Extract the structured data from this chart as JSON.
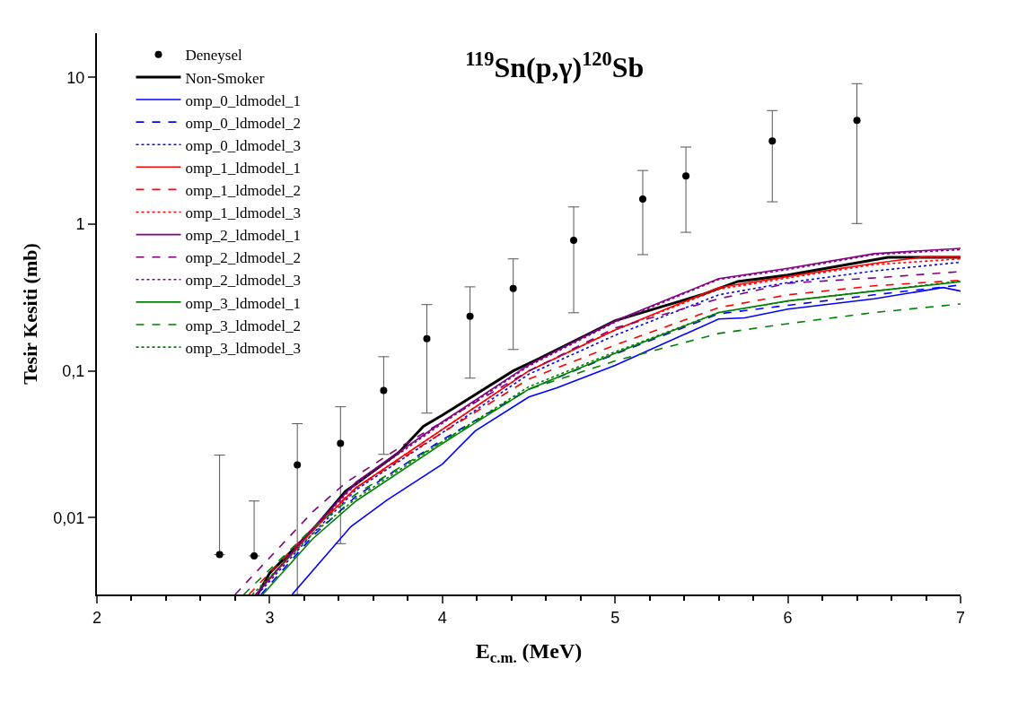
{
  "chart_data": {
    "type": "line",
    "title": "$^{119}$Sn(p,γ)$^{120}$Sb",
    "xlabel": "E$_{c.m.}$ (MeV)",
    "ylabel": "Tesir Kesiti (mb)",
    "log": "y",
    "xlim": [
      2,
      7
    ],
    "xticks": [
      2,
      3,
      4,
      5,
      6,
      7
    ],
    "ylim": [
      0.003,
      20
    ],
    "yticks": [
      {
        "value": 0.01,
        "label": "0,01"
      },
      {
        "value": 0.1,
        "label": "0,1"
      },
      1,
      10
    ],
    "grid": false,
    "legend": "top left",
    "series": [
      {
        "name": "Deneysel",
        "type": "scatter",
        "marker": "circle",
        "color": "#000000",
        "x": [
          2.71,
          2.91,
          3.16,
          3.41,
          3.66,
          3.91,
          4.16,
          4.41,
          4.76,
          5.16,
          5.41,
          5.91,
          6.4
        ],
        "values": [
          0.0056,
          0.0055,
          0.0229,
          0.0321,
          0.0735,
          0.166,
          0.236,
          0.364,
          0.777,
          1.48,
          2.13,
          3.69,
          5.1
        ],
        "errors": [
          [
            0.0056,
            0.0267
          ],
          [
            0.0055,
            0.013
          ],
          [
            0.003,
            0.0437
          ],
          [
            0.00666,
            0.057
          ],
          [
            0.027,
            0.125
          ],
          [
            0.0516,
            0.283
          ],
          [
            0.0893,
            0.374
          ],
          [
            0.14,
            0.58
          ],
          [
            0.249,
            1.31
          ],
          [
            0.62,
            2.32
          ],
          [
            0.88,
            3.35
          ],
          [
            1.42,
            5.94
          ],
          [
            1.01,
            9.06
          ]
        ]
      },
      {
        "name": "Non-Smoker",
        "color": "#000000",
        "line_style": "solid",
        "x": [
          2.93,
          3.0,
          3.25,
          3.44,
          3.5,
          3.75,
          3.89,
          4.0,
          4.41,
          4.55,
          5.0,
          5.5,
          5.71,
          6.0,
          6.58,
          7.0
        ],
        "values": [
          0.003,
          0.0042,
          0.0083,
          0.0152,
          0.017,
          0.028,
          0.042,
          0.05,
          0.1,
          0.12,
          0.22,
          0.33,
          0.407,
          0.45,
          0.594,
          0.594
        ]
      },
      {
        "name": "omp_0_ldmodel_1",
        "color": "#0000ff",
        "line_style": "solid",
        "x": [
          3.13,
          3.47,
          3.68,
          4.0,
          4.19,
          4.5,
          4.66,
          5.0,
          5.6,
          5.75,
          6.0,
          6.5,
          6.9,
          7.0
        ],
        "values": [
          0.003,
          0.0087,
          0.0132,
          0.0232,
          0.039,
          0.0665,
          0.0766,
          0.109,
          0.226,
          0.23,
          0.264,
          0.31,
          0.37,
          0.35
        ]
      },
      {
        "name": "omp_0_ldmodel_2",
        "color": "#0000ff",
        "line_style": "dashed",
        "x": [
          2.95,
          3.25,
          3.5,
          4.0,
          4.5,
          5.0,
          5.6,
          6.0,
          6.5,
          7.0
        ],
        "values": [
          0.003,
          0.0075,
          0.014,
          0.034,
          0.075,
          0.13,
          0.245,
          0.28,
          0.33,
          0.385
        ]
      },
      {
        "name": "omp_0_ldmodel_3",
        "color": "#0000ff",
        "line_style": "dotted",
        "x": [
          2.93,
          3.25,
          3.5,
          4.0,
          4.5,
          5.0,
          5.6,
          6.0,
          6.5,
          7.0
        ],
        "values": [
          0.003,
          0.0078,
          0.0155,
          0.038,
          0.095,
          0.175,
          0.33,
          0.4,
          0.48,
          0.55
        ]
      },
      {
        "name": "omp_1_ldmodel_1",
        "color": "#ff0000",
        "line_style": "solid",
        "x": [
          2.92,
          3.25,
          3.5,
          4.0,
          4.5,
          5.0,
          5.6,
          6.0,
          6.5,
          6.8,
          7.0
        ],
        "values": [
          0.003,
          0.0082,
          0.016,
          0.04,
          0.1,
          0.19,
          0.37,
          0.44,
          0.54,
          0.6,
          0.6
        ]
      },
      {
        "name": "omp_1_ldmodel_2",
        "color": "#ff0000",
        "line_style": "dashed",
        "x": [
          2.88,
          3.25,
          3.5,
          4.0,
          4.5,
          5.0,
          5.6,
          6.0,
          6.5,
          7.0
        ],
        "values": [
          0.003,
          0.0085,
          0.016,
          0.038,
          0.088,
          0.15,
          0.27,
          0.33,
          0.38,
          0.415
        ]
      },
      {
        "name": "omp_1_ldmodel_3",
        "color": "#ff0000",
        "line_style": "dotted",
        "x": [
          2.92,
          3.25,
          3.5,
          4.0,
          4.5,
          5.0,
          5.6,
          6.0,
          6.5,
          7.0
        ],
        "values": [
          0.003,
          0.0082,
          0.016,
          0.04,
          0.1,
          0.19,
          0.36,
          0.43,
          0.53,
          0.58
        ]
      },
      {
        "name": "omp_2_ldmodel_1",
        "color": "#800080",
        "line_style": "solid",
        "x": [
          2.92,
          3.25,
          3.5,
          4.0,
          4.5,
          5.0,
          5.6,
          6.0,
          6.5,
          7.0
        ],
        "values": [
          0.003,
          0.0085,
          0.0175,
          0.045,
          0.11,
          0.22,
          0.425,
          0.5,
          0.63,
          0.684
        ]
      },
      {
        "name": "omp_2_ldmodel_2",
        "color": "#800080",
        "line_style": "dashed",
        "x": [
          2.8,
          3.25,
          3.44,
          3.75,
          4.0,
          4.5,
          5.0,
          5.6,
          6.0,
          6.5,
          7.0
        ],
        "values": [
          0.003,
          0.011,
          0.0173,
          0.03,
          0.045,
          0.1,
          0.196,
          0.31,
          0.396,
          0.43,
          0.475
        ]
      },
      {
        "name": "omp_2_ldmodel_3",
        "color": "#800080",
        "line_style": "dotted",
        "x": [
          2.92,
          3.25,
          3.5,
          4.0,
          4.5,
          5.0,
          5.6,
          6.0,
          6.5,
          7.0
        ],
        "values": [
          0.003,
          0.0084,
          0.017,
          0.044,
          0.108,
          0.215,
          0.42,
          0.49,
          0.62,
          0.67
        ]
      },
      {
        "name": "omp_3_ldmodel_1",
        "color": "#008000",
        "line_style": "solid",
        "x": [
          2.96,
          3.25,
          3.5,
          4.0,
          4.5,
          5.0,
          5.6,
          6.0,
          6.5,
          7.0
        ],
        "values": [
          0.003,
          0.0072,
          0.013,
          0.032,
          0.075,
          0.132,
          0.25,
          0.3,
          0.35,
          0.405
        ]
      },
      {
        "name": "omp_3_ldmodel_2",
        "color": "#008000",
        "line_style": "dashed",
        "x": [
          2.85,
          3.25,
          3.5,
          4.0,
          4.5,
          5.0,
          5.6,
          6.0,
          6.5,
          7.0
        ],
        "values": [
          0.003,
          0.0085,
          0.0145,
          0.033,
          0.075,
          0.117,
          0.18,
          0.21,
          0.25,
          0.286
        ]
      },
      {
        "name": "omp_3_ldmodel_3",
        "color": "#008000",
        "line_style": "dotted",
        "x": [
          2.9,
          3.25,
          3.5,
          4.0,
          4.5,
          5.0,
          5.6,
          6.0,
          6.5,
          7.0
        ],
        "values": [
          0.003,
          0.0078,
          0.0135,
          0.033,
          0.078,
          0.135,
          0.25,
          0.3,
          0.35,
          0.41
        ]
      }
    ]
  }
}
